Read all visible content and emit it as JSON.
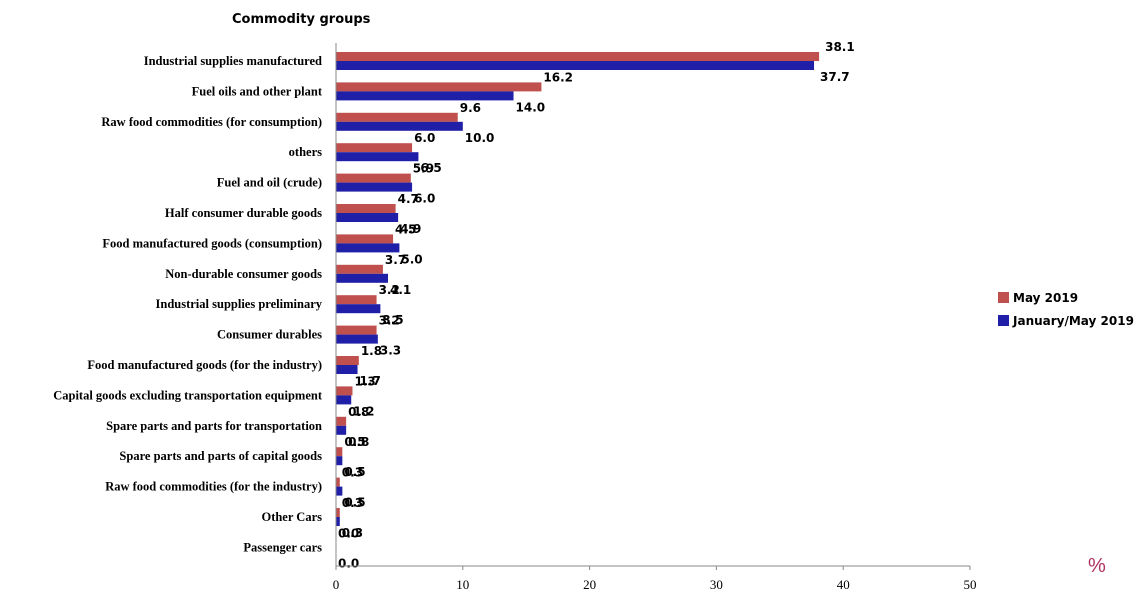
{
  "chart_data": {
    "type": "bar",
    "orientation": "horizontal",
    "title": "Commodity groups",
    "unit": "%",
    "categories": [
      "Industrial supplies manufactured",
      "Fuel oils and other plant",
      "Raw food commodities (for consumption)",
      "others",
      "Fuel and oil (crude)",
      "Half consumer durable goods",
      "Food manufactured goods (consumption)",
      "Non-durable consumer goods",
      "Industrial supplies preliminary",
      "Consumer durables",
      "Food manufactured goods (for the industry)",
      "Capital goods excluding transportation equipment",
      "Spare parts and parts for transportation",
      "Spare parts and parts of capital goods",
      "Raw food commodities (for the industry)",
      "Other Cars",
      "Passenger cars"
    ],
    "series": [
      {
        "name": "May  2019",
        "color": "#c0504d",
        "values": [
          38.1,
          16.2,
          9.6,
          6.0,
          5.9,
          4.7,
          4.5,
          3.7,
          3.2,
          3.2,
          1.8,
          1.3,
          0.8,
          0.5,
          0.3,
          0.3,
          0.0
        ],
        "labels": [
          "38.1",
          "16.2",
          "9.6",
          "6.0",
          "5.9",
          "4.7",
          "4.5",
          "3.7",
          "3.2",
          "3.2",
          "1.8",
          "1.3",
          "0.8",
          "0.5",
          "0.3",
          "0.3",
          "0.0"
        ]
      },
      {
        "name": "January/May 2019",
        "color": "#1f1fa8",
        "values": [
          37.7,
          14.0,
          10.0,
          6.5,
          6.0,
          4.9,
          5.0,
          4.1,
          3.5,
          3.3,
          1.7,
          1.2,
          0.8,
          0.5,
          0.5,
          0.3,
          0.0
        ],
        "labels": [
          "37.7",
          "14.0",
          "10.0",
          "6.5",
          "6.0",
          "4.9",
          "5.0",
          "4.1",
          "3.5",
          "3.3",
          "1.7",
          "1.2",
          "0.8",
          "0.5",
          "0.5",
          "0.3",
          "0.0"
        ]
      }
    ],
    "xlim": [
      0,
      50
    ],
    "xticks": [
      "0",
      "10",
      "20",
      "30",
      "40",
      "50"
    ],
    "grid": false,
    "legend": "right"
  }
}
